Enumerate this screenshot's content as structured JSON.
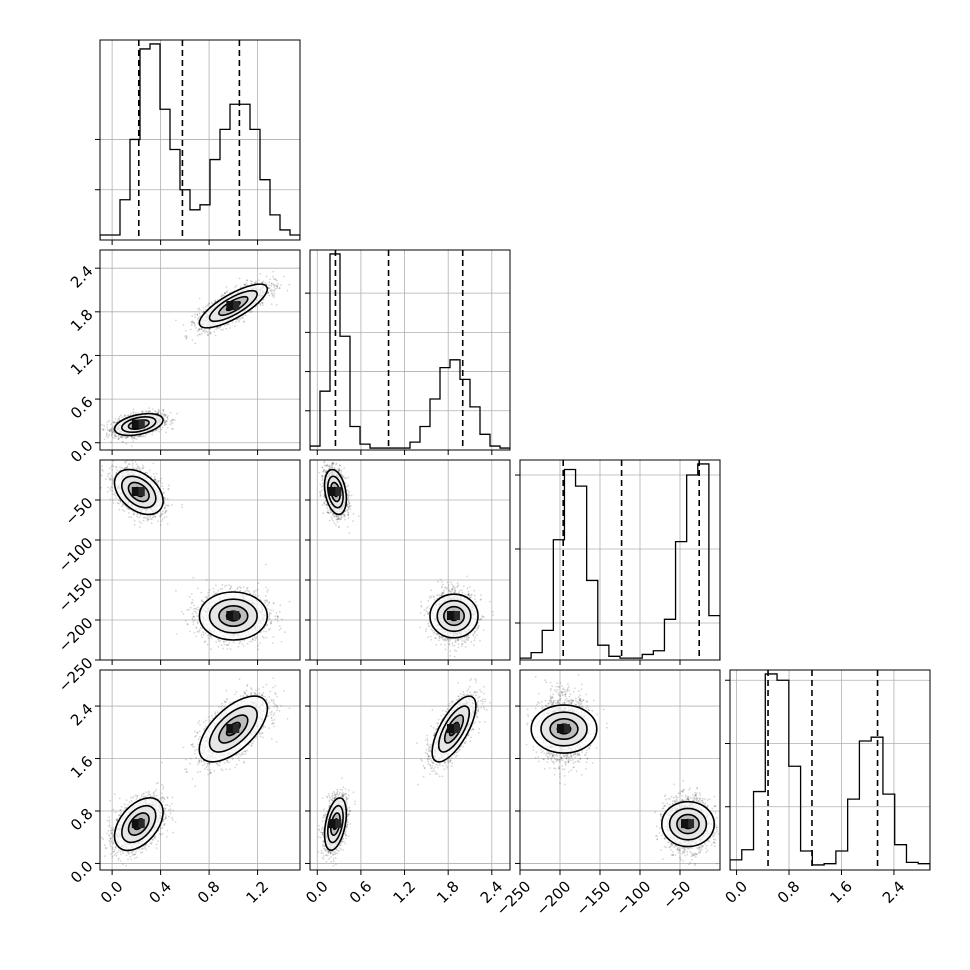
{
  "chart_data": {
    "type": "corner",
    "parameters": [
      {
        "range": [
          -0.1,
          1.55
        ],
        "ticks": [
          0.0,
          0.4,
          0.8,
          1.2
        ],
        "tick_labels": [
          "0.0",
          "0.4",
          "0.8",
          "1.2"
        ],
        "quantiles": [
          0.22,
          0.58,
          1.05
        ],
        "histogram": [
          0.5,
          0.5,
          4,
          10,
          19,
          19.5,
          13,
          9,
          5,
          3,
          3.5,
          8,
          11,
          13.5,
          13.5,
          11,
          6,
          2.5,
          1.0,
          0.5
        ],
        "hist_ticks": [
          5,
          10
        ]
      },
      {
        "range": [
          -0.1,
          2.65
        ],
        "ticks": [
          0.0,
          0.6,
          1.2,
          1.8,
          2.4
        ],
        "tick_labels": [
          "0.0",
          "0.6",
          "1.2",
          "1.8",
          "2.4"
        ],
        "quantiles": [
          0.25,
          0.98,
          2.0
        ],
        "histogram": [
          0.2,
          3,
          10,
          5.8,
          1.2,
          0.3,
          0.1,
          0.1,
          0.1,
          0.1,
          0.4,
          1.2,
          2.6,
          4.2,
          4.6,
          3.6,
          2.2,
          0.8,
          0.2,
          0.1
        ],
        "hist_ticks": [
          2,
          4,
          6,
          8
        ]
      },
      {
        "range": [
          -250,
          0
        ],
        "ticks": [
          -250,
          -200,
          -150,
          -100,
          -50
        ],
        "tick_labels": [
          "−250",
          "−200",
          "−150",
          "−100",
          "−50"
        ],
        "quantiles": [
          -196,
          -123,
          -26
        ],
        "histogram": [
          0.1,
          0.4,
          1.6,
          6.5,
          10.3,
          9.4,
          4.3,
          0.8,
          0.2,
          0.1,
          0.1,
          0.3,
          0.5,
          2.2,
          6.4,
          10.0,
          10.6,
          2.4
        ],
        "hist_ticks": [
          2,
          6,
          10
        ]
      },
      {
        "range": [
          -0.1,
          2.95
        ],
        "ticks": [
          0.0,
          0.8,
          1.6,
          2.4
        ],
        "tick_labels": [
          "0.0",
          "0.8",
          "1.6",
          "2.4"
        ],
        "quantiles": [
          0.48,
          1.15,
          2.15
        ],
        "histogram": [
          0.8,
          1.6,
          6.2,
          15.5,
          15.0,
          8.2,
          1.5,
          0.4,
          0.5,
          1.5,
          5.6,
          10.2,
          10.5,
          6.0,
          2.0,
          0.6,
          0.5
        ],
        "hist_ticks": [
          5,
          10,
          15
        ]
      }
    ],
    "clusters": [
      {
        "mean": [
          0.22,
          0.25,
          -40,
          0.6
        ],
        "sd": [
          0.1,
          0.075,
          14,
          0.2
        ],
        "weight": 0.5
      },
      {
        "mean": [
          1.0,
          1.88,
          -195,
          2.05
        ],
        "sd": [
          0.14,
          0.15,
          15,
          0.25
        ],
        "weight": 0.5
      }
    ],
    "correlations": {
      "0-1": [
        0.4,
        0.78
      ],
      "0-2": [
        -0.4,
        0.0
      ],
      "1-2": [
        -0.3,
        0.0
      ],
      "0-3": [
        0.45,
        0.62
      ],
      "1-3": [
        0.4,
        0.7
      ],
      "2-3": [
        0.0,
        0.0
      ]
    }
  }
}
